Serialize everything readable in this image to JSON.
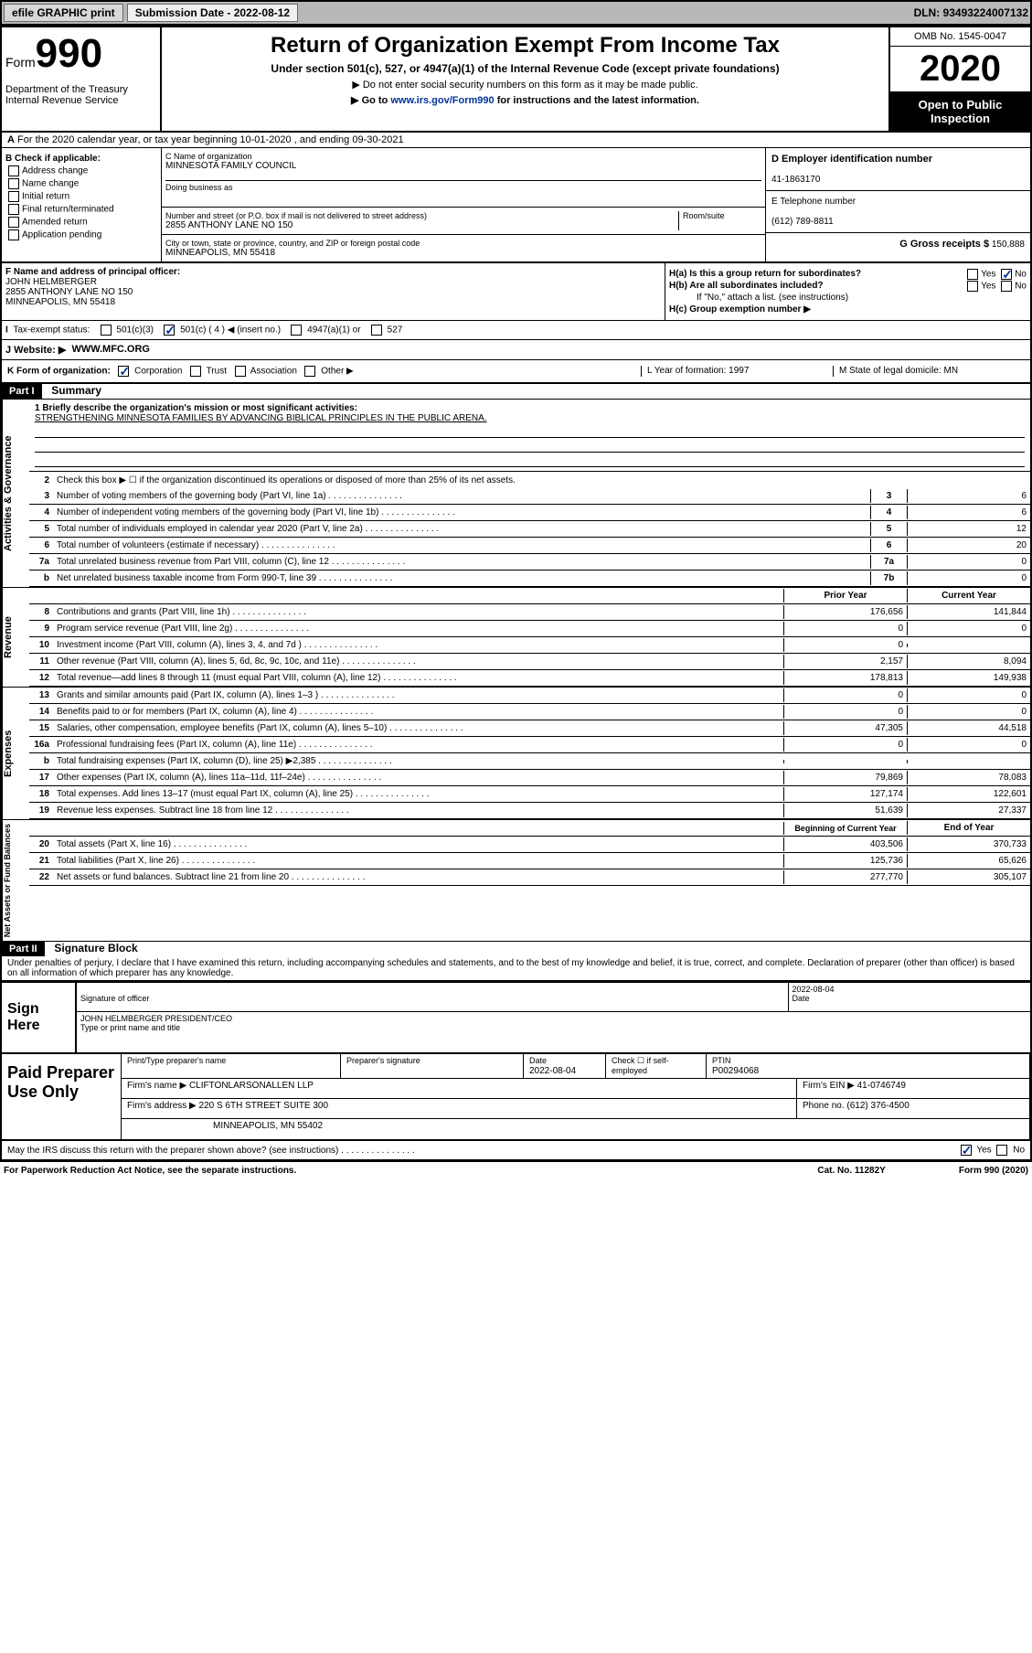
{
  "topbar": {
    "efile": "efile GRAPHIC print",
    "sub_label": "Submission Date - 2022-08-12",
    "dln": "DLN: 93493224007132"
  },
  "header": {
    "form_word": "Form",
    "form_num": "990",
    "dept": "Department of the Treasury\nInternal Revenue Service",
    "title": "Return of Organization Exempt From Income Tax",
    "sub1": "Under section 501(c), 527, or 4947(a)(1) of the Internal Revenue Code (except private foundations)",
    "sub2": "▶ Do not enter social security numbers on this form as it may be made public.",
    "sub3_pre": "▶ Go to ",
    "sub3_link": "www.irs.gov/Form990",
    "sub3_post": " for instructions and the latest information.",
    "omb": "OMB No. 1545-0047",
    "year": "2020",
    "inspect": "Open to Public Inspection"
  },
  "rowA": "For the 2020 calendar year, or tax year beginning 10-01-2020    , and ending 09-30-2021",
  "colB": {
    "header": "B Check if applicable:",
    "items": [
      "Address change",
      "Name change",
      "Initial return",
      "Final return/terminated",
      "Amended return",
      "Application pending"
    ]
  },
  "colC": {
    "name_lbl": "C Name of organization",
    "name": "MINNESOTA FAMILY COUNCIL",
    "dba_lbl": "Doing business as",
    "addr_lbl": "Number and street (or P.O. box if mail is not delivered to street address)",
    "addr": "2855 ANTHONY LANE NO 150",
    "room_lbl": "Room/suite",
    "city_lbl": "City or town, state or province, country, and ZIP or foreign postal code",
    "city": "MINNEAPOLIS, MN  55418"
  },
  "colDE": {
    "d_lbl": "D Employer identification number",
    "d_val": "41-1863170",
    "e_lbl": "E Telephone number",
    "e_val": "(612) 789-8811",
    "g_lbl": "G Gross receipts $",
    "g_val": "150,888"
  },
  "rowF": {
    "lbl": "F Name and address of principal officer:",
    "name": "JOHN HELMBERGER",
    "addr": "2855 ANTHONY LANE NO 150\nMINNEAPOLIS, MN  55418"
  },
  "rowH": {
    "a": "H(a)  Is this a group return for subordinates?",
    "b": "H(b)  Are all subordinates included?",
    "b_note": "If \"No,\" attach a list. (see instructions)",
    "c": "H(c)  Group exemption number ▶"
  },
  "rowI": {
    "lbl": "Tax-exempt status:",
    "opts": [
      "501(c)(3)",
      "501(c) ( 4 ) ◀ (insert no.)",
      "4947(a)(1) or",
      "527"
    ]
  },
  "rowJ": {
    "lbl": "J    Website: ▶",
    "val": "WWW.MFC.ORG"
  },
  "rowK": {
    "lbl": "K Form of organization:",
    "opts": [
      "Corporation",
      "Trust",
      "Association",
      "Other ▶"
    ],
    "l": "L Year of formation: 1997",
    "m": "M State of legal domicile: MN"
  },
  "part1": {
    "hdr": "Part I",
    "title": "Summary",
    "mission_lbl": "1  Briefly describe the organization's mission or most significant activities:",
    "mission": "STRENGTHENING MINNESOTA FAMILIES BY ADVANCING BIBLICAL PRINCIPLES IN THE PUBLIC ARENA.",
    "line2": "Check this box ▶ ☐  if the organization discontinued its operations or disposed of more than 25% of its net assets.",
    "sidebar1": "Activities & Governance",
    "sidebar2": "Revenue",
    "sidebar3": "Expenses",
    "sidebar4": "Net Assets or Fund Balances",
    "lines_gov": [
      {
        "n": "3",
        "t": "Number of voting members of the governing body (Part VI, line 1a)",
        "b": "3",
        "v": "6"
      },
      {
        "n": "4",
        "t": "Number of independent voting members of the governing body (Part VI, line 1b)",
        "b": "4",
        "v": "6"
      },
      {
        "n": "5",
        "t": "Total number of individuals employed in calendar year 2020 (Part V, line 2a)",
        "b": "5",
        "v": "12"
      },
      {
        "n": "6",
        "t": "Total number of volunteers (estimate if necessary)",
        "b": "6",
        "v": "20"
      },
      {
        "n": "7a",
        "t": "Total unrelated business revenue from Part VIII, column (C), line 12",
        "b": "7a",
        "v": "0"
      },
      {
        "n": "b",
        "t": "Net unrelated business taxable income from Form 990-T, line 39",
        "b": "7b",
        "v": "0"
      }
    ],
    "col_hdr": {
      "prior": "Prior Year",
      "current": "Current Year"
    },
    "lines_rev": [
      {
        "n": "8",
        "t": "Contributions and grants (Part VIII, line 1h)",
        "p": "176,656",
        "c": "141,844"
      },
      {
        "n": "9",
        "t": "Program service revenue (Part VIII, line 2g)",
        "p": "0",
        "c": "0"
      },
      {
        "n": "10",
        "t": "Investment income (Part VIII, column (A), lines 3, 4, and 7d )",
        "p": "0",
        "c": ""
      },
      {
        "n": "11",
        "t": "Other revenue (Part VIII, column (A), lines 5, 6d, 8c, 9c, 10c, and 11e)",
        "p": "2,157",
        "c": "8,094"
      },
      {
        "n": "12",
        "t": "Total revenue—add lines 8 through 11 (must equal Part VIII, column (A), line 12)",
        "p": "178,813",
        "c": "149,938"
      }
    ],
    "lines_exp": [
      {
        "n": "13",
        "t": "Grants and similar amounts paid (Part IX, column (A), lines 1–3 )",
        "p": "0",
        "c": "0"
      },
      {
        "n": "14",
        "t": "Benefits paid to or for members (Part IX, column (A), line 4)",
        "p": "0",
        "c": "0"
      },
      {
        "n": "15",
        "t": "Salaries, other compensation, employee benefits (Part IX, column (A), lines 5–10)",
        "p": "47,305",
        "c": "44,518"
      },
      {
        "n": "16a",
        "t": "Professional fundraising fees (Part IX, column (A), line 11e)",
        "p": "0",
        "c": "0"
      },
      {
        "n": "b",
        "t": "Total fundraising expenses (Part IX, column (D), line 25) ▶2,385",
        "p": "",
        "c": ""
      },
      {
        "n": "17",
        "t": "Other expenses (Part IX, column (A), lines 11a–11d, 11f–24e)",
        "p": "79,869",
        "c": "78,083"
      },
      {
        "n": "18",
        "t": "Total expenses. Add lines 13–17 (must equal Part IX, column (A), line 25)",
        "p": "127,174",
        "c": "122,601"
      },
      {
        "n": "19",
        "t": "Revenue less expenses. Subtract line 18 from line 12",
        "p": "51,639",
        "c": "27,337"
      }
    ],
    "col_hdr2": {
      "begin": "Beginning of Current Year",
      "end": "End of Year"
    },
    "lines_net": [
      {
        "n": "20",
        "t": "Total assets (Part X, line 16)",
        "p": "403,506",
        "c": "370,733"
      },
      {
        "n": "21",
        "t": "Total liabilities (Part X, line 26)",
        "p": "125,736",
        "c": "65,626"
      },
      {
        "n": "22",
        "t": "Net assets or fund balances. Subtract line 21 from line 20",
        "p": "277,770",
        "c": "305,107"
      }
    ]
  },
  "part2": {
    "hdr": "Part II",
    "title": "Signature Block",
    "decl": "Under penalties of perjury, I declare that I have examined this return, including accompanying schedules and statements, and to the best of my knowledge and belief, it is true, correct, and complete. Declaration of preparer (other than officer) is based on all information of which preparer has any knowledge."
  },
  "sign": {
    "lbl": "Sign Here",
    "sig_lbl": "Signature of officer",
    "date": "2022-08-04",
    "date_lbl": "Date",
    "name": "JOHN HELMBERGER  PRESIDENT/CEO",
    "name_lbl": "Type or print name and title"
  },
  "prep": {
    "lbl": "Paid Preparer Use Only",
    "r1": {
      "c1_lbl": "Print/Type preparer's name",
      "c2_lbl": "Preparer's signature",
      "c3_lbl": "Date",
      "c3": "2022-08-04",
      "c4": "Check ☐ if self-employed",
      "c5_lbl": "PTIN",
      "c5": "P00294068"
    },
    "r2": {
      "lbl": "Firm's name    ▶",
      "val": "CLIFTONLARSONALLEN LLP",
      "ein_lbl": "Firm's EIN ▶",
      "ein": "41-0746749"
    },
    "r3": {
      "lbl": "Firm's address ▶",
      "val": "220 S 6TH STREET SUITE 300",
      "ph_lbl": "Phone no.",
      "ph": "(612) 376-4500"
    },
    "r3b": "MINNEAPOLIS, MN  55402",
    "irs": "May the IRS discuss this return with the preparer shown above? (see instructions)"
  },
  "footer": {
    "left": "For Paperwork Reduction Act Notice, see the separate instructions.",
    "mid": "Cat. No. 11282Y",
    "right": "Form 990 (2020)"
  }
}
